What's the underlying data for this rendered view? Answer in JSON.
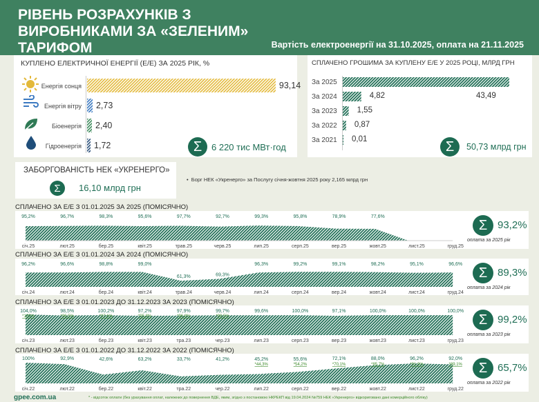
{
  "header": {
    "title": "РІВЕНЬ РОЗРАХУНКІВ З ВИРОБНИКАМИ ЗА «ЗЕЛЕНИМ» ТАРИФОМ",
    "subtitle": "Вартість електроенергії на 31.10.2025, оплата на 21.11.2025"
  },
  "purchased": {
    "title": "КУПЛЕНО ЕЛЕКТРИЧНОЇ ЕНЕРГІЇ (Е/Е) ЗА 2025 РІК, %",
    "total": "6 220 тис МВт·год",
    "items": [
      {
        "label": "Енергія сонця",
        "value": "93,14",
        "num": 93.14,
        "icon": "sun-icon",
        "color": "#e3b93a"
      },
      {
        "label": "Енергія вітру",
        "value": "2,73",
        "num": 2.73,
        "icon": "wind-icon",
        "color": "#3a78c0"
      },
      {
        "label": "Біоенергія",
        "value": "2,40",
        "num": 2.4,
        "icon": "leaf-icon",
        "color": "#3c8a5a"
      },
      {
        "label": "Гідроенергія",
        "value": "1,72",
        "num": 1.72,
        "icon": "water-drop-icon",
        "color": "#2a4f7a"
      }
    ]
  },
  "paid_money": {
    "title": "СПЛАЧЕНО ГРОШИМА ЗА КУПЛЕНУ Е/Е У 2025 РОЦІ, МЛРД ГРН",
    "total": "50,73 млрд грн",
    "items": [
      {
        "label": "За 2025",
        "value": "43,49",
        "num": 43.49
      },
      {
        "label": "За 2024",
        "value": "4,82",
        "num": 4.82
      },
      {
        "label": "За 2023",
        "value": "1,55",
        "num": 1.55
      },
      {
        "label": "За 2022",
        "value": "0,87",
        "num": 0.87
      },
      {
        "label": "За 2021",
        "value": "0,01",
        "num": 0.01
      }
    ]
  },
  "debt": {
    "title": "ЗАБОРГОВАНІСТЬ НЕК «УКРЕНЕРГО»",
    "value": "16,10 млрд грн",
    "note": "Борг НЕК «Укренерго» за Послугу січня-жовтня 2025 року 2,165 млрд грн"
  },
  "chart_data": [
    {
      "type": "area",
      "title": "СПЛАЧЕНО ЗА Е/Е З 01.01.2025 ЗА 2025  (ПОМІСЯЧНО)",
      "categories": [
        "січ.25",
        "лют.25",
        "бер.25",
        "квіт.25",
        "трав.25",
        "черв.25",
        "лип.25",
        "серп.25",
        "вер.25",
        "жовт.25",
        "лист.25",
        "груд.25"
      ],
      "values": [
        95.2,
        96.7,
        98.3,
        95.6,
        97.7,
        92.7,
        99.3,
        95.8,
        78.9,
        77.6,
        null,
        null
      ],
      "labels": [
        "95,2%",
        "96,7%",
        "98,3%",
        "95,6%",
        "97,7%",
        "92,7%",
        "99,3%",
        "95,8%",
        "78,9%",
        "77,6%",
        "",
        ""
      ],
      "ylim": [
        0,
        100
      ],
      "total": "93,2%",
      "total_caption": "оплата за 2025 рік"
    },
    {
      "type": "area",
      "title": "СПЛАЧЕНО ЗА Е/Е З 01.01.2024 ЗА 2024  (ПОМІСЯЧНО)",
      "categories": [
        "січ.24",
        "лют.24",
        "бер.24",
        "квіт.24",
        "трав.24",
        "черв.24",
        "лип.24",
        "серп.24",
        "вер.24",
        "жовт.24",
        "лист.24",
        "груд.24"
      ],
      "values": [
        96.2,
        96.6,
        98.8,
        99.0,
        61.3,
        69.3,
        96.3,
        99.2,
        99.1,
        98.2,
        95.1,
        96.6
      ],
      "labels": [
        "96,2%",
        "96,6%",
        "98,8%",
        "99,0%",
        "61,3%",
        "69,3%",
        "96,3%",
        "99,2%",
        "99,1%",
        "98,2%",
        "95,1%",
        "96,6%"
      ],
      "ylim": [
        35,
        100
      ],
      "total": "89,3%",
      "total_caption": "оплата за 2024 рік"
    },
    {
      "type": "area",
      "title": "СПЛАЧЕНО ЗА Е/Е З 01.01.2023 ДО 31.12.2023 ЗА 2023  (ПОМІСЯЧНО)",
      "categories": [
        "січ.23",
        "лют.23",
        "бер.23",
        "квіт.23",
        "тра.23",
        "чер.23",
        "лип.23",
        "серп.23",
        "вер.23",
        "жовт.23",
        "лист.23",
        "груд.23"
      ],
      "values": [
        104.0,
        98.5,
        100.2,
        97.2,
        97.9,
        99.7,
        99.6,
        100.0,
        97.1,
        100.0,
        100.0,
        100.0
      ],
      "labels": [
        "104,0%",
        "98,5%",
        "100,2%",
        "97,2%",
        "97,9%",
        "99,7%",
        "99,6%",
        "100,0%",
        "97,1%",
        "100,0%",
        "100,0%",
        "100,0%"
      ],
      "sublabels": [
        "*100%",
        "*96,5%",
        "*97,6%",
        "*95,8%",
        "*96,8%",
        "*99,5%",
        "",
        "",
        "",
        "",
        "",
        ""
      ],
      "ylim": [
        0,
        104
      ],
      "total": "99,2%",
      "total_caption": "оплата за 2023 рік"
    },
    {
      "type": "area",
      "title": "СПЛАЧЕНО ЗА Е/Е З 01.01.2022 ДО 31.12.2022 ЗА 2022 (ПОМІСЯЧНО)",
      "categories": [
        "січ.22",
        "лют.22",
        "бер.22",
        "квіт.22",
        "тра.22",
        "чер.22",
        "лип.22",
        "серп.22",
        "вер.22",
        "жовт.22",
        "лист.22",
        "груд.22"
      ],
      "values": [
        100,
        92.9,
        42.6,
        63.2,
        33.7,
        41.2,
        45.2,
        55.6,
        72.1,
        88.0,
        96.2,
        92.0
      ],
      "labels": [
        "100%",
        "92,9%",
        "42,6%",
        "63,2%",
        "33,7%",
        "41,2%",
        "45,2%",
        "55,6%",
        "72,1%",
        "88,0%",
        "96,2%",
        "92,0%"
      ],
      "sublabels": [
        "",
        "",
        "",
        "",
        "",
        "",
        "*44,3%",
        "*54,2%",
        "*70,1%",
        "*85,7%",
        "*91,9%",
        "*89,1%"
      ],
      "ylim": [
        0,
        100
      ],
      "total": "65,7%",
      "total_caption": "оплата за 2022 рік"
    }
  ],
  "footer": {
    "site": "gpee.com.ua",
    "note": "* - відсоток оплати (без урахування оплат, належних до повернення ВДЕ, яким, згідно з постановою НКРЕКП від 19.04.2024 №759 НЕК «Укренерго» відкориговано дані комерційного обліку)"
  },
  "colors": {
    "header": "#3f8160",
    "accent": "#1d6b52",
    "background": "#eceee4"
  }
}
